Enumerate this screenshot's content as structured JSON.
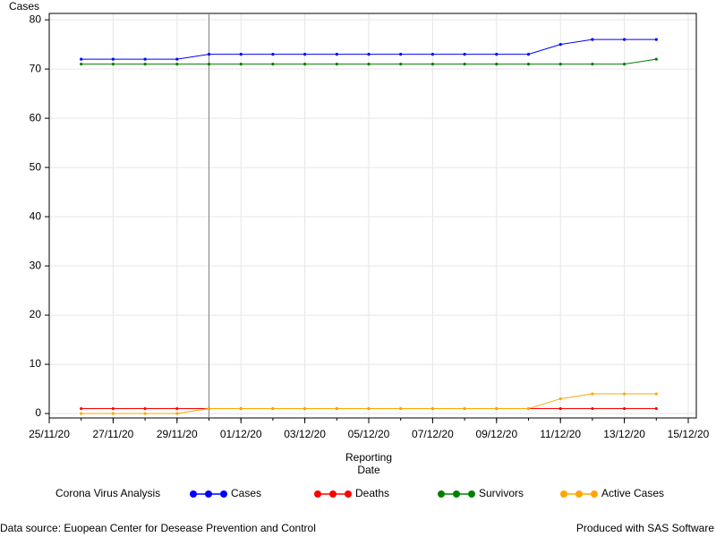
{
  "chart_data": {
    "type": "line",
    "ylabel": "Cases",
    "xlabel": [
      "Reporting",
      "Date"
    ],
    "legend_title": "Corona Virus Analysis",
    "footnote_left": "Data source: Euopean Center for Desease Prevention and Control",
    "footnote_right": "Produced with SAS Software",
    "x": [
      "26/11/20",
      "27/11/20",
      "28/11/20",
      "29/11/20",
      "30/11/20",
      "01/12/20",
      "02/12/20",
      "03/12/20",
      "04/12/20",
      "05/12/20",
      "06/12/20",
      "07/12/20",
      "08/12/20",
      "09/12/20",
      "10/12/20",
      "11/12/20",
      "12/12/20",
      "13/12/20",
      "14/12/20"
    ],
    "series": [
      {
        "name": "Cases",
        "color": "#0000ff",
        "values": [
          72,
          72,
          72,
          72,
          73,
          73,
          73,
          73,
          73,
          73,
          73,
          73,
          73,
          73,
          73,
          75,
          76,
          76,
          76
        ]
      },
      {
        "name": "Deaths",
        "color": "#ff0000",
        "values": [
          1,
          1,
          1,
          1,
          1,
          1,
          1,
          1,
          1,
          1,
          1,
          1,
          1,
          1,
          1,
          1,
          1,
          1,
          1
        ]
      },
      {
        "name": "Survivors",
        "color": "#008000",
        "values": [
          71,
          71,
          71,
          71,
          71,
          71,
          71,
          71,
          71,
          71,
          71,
          71,
          71,
          71,
          71,
          71,
          71,
          71,
          72
        ]
      },
      {
        "name": "Active Cases",
        "color": "#ffa500",
        "values": [
          0,
          0,
          0,
          0,
          1,
          1,
          1,
          1,
          1,
          1,
          1,
          1,
          1,
          1,
          1,
          3,
          4,
          4,
          4
        ]
      }
    ],
    "reference_x": "30/11/20",
    "xlim": [
      "25/11/20",
      "15/12/20"
    ],
    "xticks": [
      "25/11/20",
      "27/11/20",
      "29/11/20",
      "01/12/20",
      "03/12/20",
      "05/12/20",
      "07/12/20",
      "09/12/20",
      "11/12/20",
      "13/12/20",
      "15/12/20"
    ],
    "ylim": [
      -0.9,
      81.3
    ],
    "yticks": [
      0,
      10,
      20,
      30,
      40,
      50,
      60,
      70,
      80
    ],
    "grid": true
  }
}
